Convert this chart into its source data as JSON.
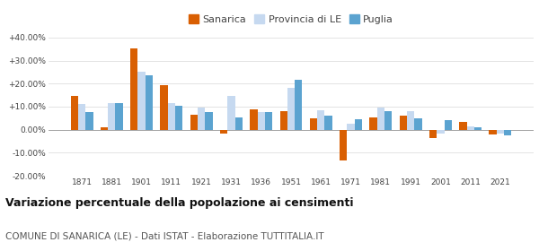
{
  "years": [
    1871,
    1881,
    1901,
    1911,
    1921,
    1931,
    1936,
    1951,
    1961,
    1971,
    1981,
    1991,
    2001,
    2011,
    2021
  ],
  "sanarica": [
    14.8,
    1.0,
    35.5,
    19.2,
    6.5,
    -1.5,
    8.8,
    8.0,
    5.0,
    -13.5,
    5.5,
    6.0,
    -3.5,
    3.5,
    -2.0
  ],
  "provincia_le": [
    11.0,
    11.5,
    25.0,
    11.5,
    9.5,
    14.5,
    7.5,
    18.0,
    8.5,
    2.5,
    9.5,
    8.0,
    -1.5,
    1.5,
    -1.5
  ],
  "puglia": [
    7.5,
    11.5,
    23.5,
    10.5,
    7.5,
    5.5,
    7.5,
    21.5,
    6.0,
    4.5,
    8.0,
    5.0,
    4.0,
    1.0,
    -2.5
  ],
  "color_sanarica": "#d95f02",
  "color_provincia": "#c6d9f0",
  "color_puglia": "#5ba3d0",
  "title": "Variazione percentuale della popolazione ai censimenti",
  "subtitle": "COMUNE DI SANARICA (LE) - Dati ISTAT - Elaborazione TUTTITALIA.IT",
  "ylim": [
    -20,
    40
  ],
  "yticks": [
    -20,
    -10,
    0,
    10,
    20,
    30,
    40
  ],
  "ytick_labels": [
    "-20.00%",
    "-10.00%",
    "0.00%",
    "+10.00%",
    "+20.00%",
    "+30.00%",
    "+40.00%"
  ],
  "legend_labels": [
    "Sanarica",
    "Provincia di LE",
    "Puglia"
  ],
  "background_color": "#ffffff",
  "bar_width": 0.25
}
